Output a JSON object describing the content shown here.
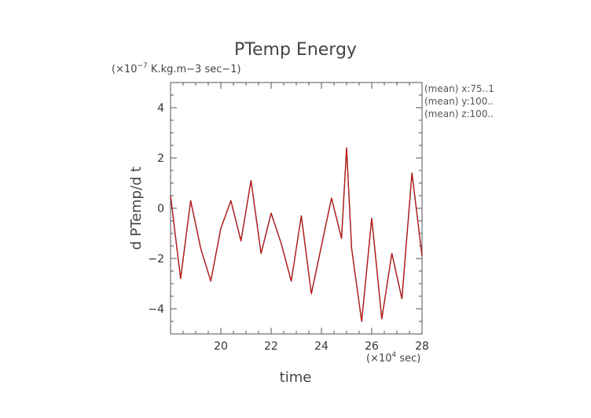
{
  "chart_data": {
    "type": "line",
    "title": "PTemp Energy",
    "units_label": "(×10",
    "units_exponent": "−7",
    "units_suffix": " K.kg.m−3 sec−1)",
    "ylabel": "d PTemp/d t",
    "xlabel": "time",
    "x_scale_label": "(×10",
    "x_scale_exponent": "4",
    "x_scale_suffix": " sec)",
    "xlim": [
      18.0,
      28.0
    ],
    "ylim": [
      -5.0,
      5.0
    ],
    "xticks": [
      20,
      22,
      24,
      26,
      28
    ],
    "yticks": [
      -4,
      -2,
      0,
      2,
      4
    ],
    "ytick_labels": [
      "−4",
      "−2",
      "0",
      "2",
      "4"
    ],
    "annotations": [
      "(mean) x:75..1",
      "(mean) y:100..",
      "(mean) z:100.."
    ],
    "colors": {
      "series_main": "#e01010",
      "series_shadow": "#222222",
      "axis": "#555555",
      "text": "#444444"
    },
    "series": [
      {
        "x": [
          18.0,
          18.4,
          18.8,
          19.2,
          19.6,
          20.0,
          20.4,
          20.8,
          21.2,
          21.6,
          22.0,
          22.4,
          22.8,
          23.2,
          23.6,
          24.0,
          24.4,
          24.8,
          25.0,
          25.2,
          25.6,
          26.0,
          26.4,
          26.8,
          27.2,
          27.6,
          28.0
        ],
        "y": [
          0.5,
          -2.8,
          0.3,
          -1.6,
          -2.9,
          -0.8,
          0.3,
          -1.3,
          1.1,
          -1.8,
          -0.2,
          -1.4,
          -2.9,
          -0.3,
          -3.4,
          -1.5,
          0.4,
          -1.2,
          2.4,
          -1.6,
          -4.5,
          -0.4,
          -4.4,
          -1.8,
          -3.6,
          1.4,
          -1.9
        ]
      }
    ]
  }
}
